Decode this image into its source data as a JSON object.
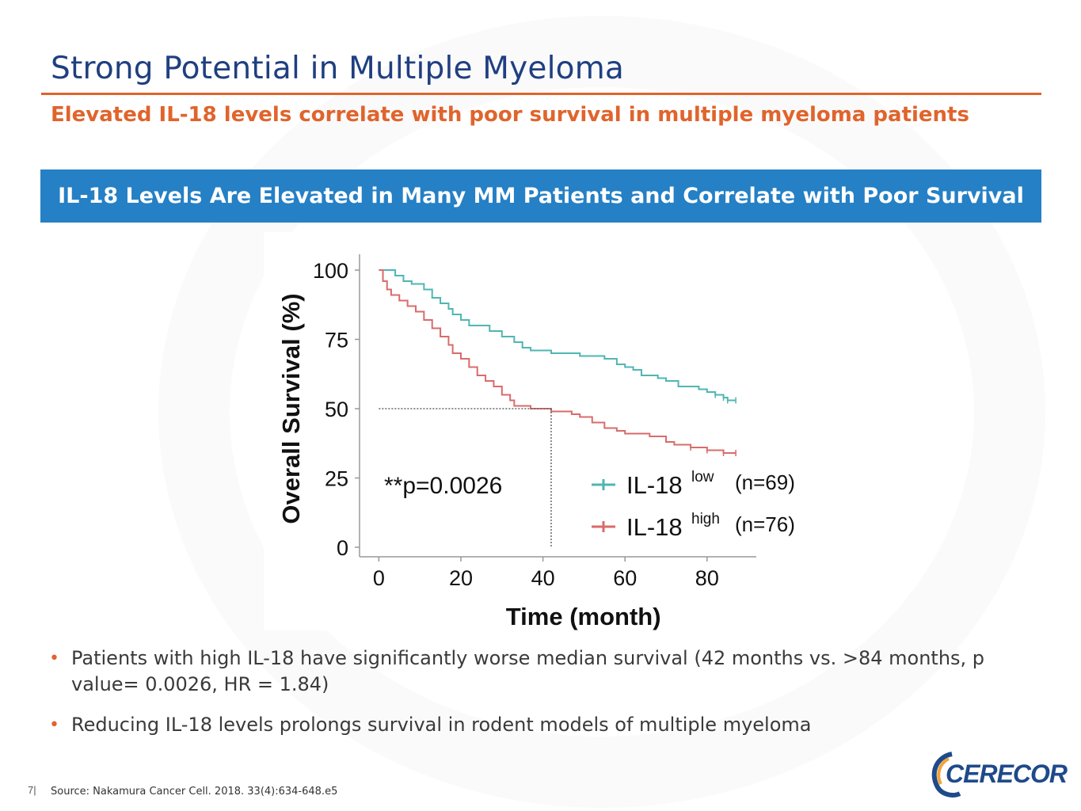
{
  "slide": {
    "title": "Strong Potential in Multiple Myeloma",
    "subtitle": "Elevated IL-18 levels correlate with poor survival in multiple myeloma patients",
    "banner": "IL-18 Levels Are Elevated in Many MM Patients and Correlate with Poor Survival",
    "page_number": "7|",
    "source": "Source: Nakamura Cancer Cell. 2018. 33(4):634-648.e5",
    "logo_text": "CERECOR"
  },
  "bullets": [
    "Patients with high IL-18 have significantly worse median survival (42 months vs. >84 months, p value= 0.0026, HR = 1.84)",
    "Reducing IL-18 levels prolongs survival in rodent models of multiple myeloma"
  ],
  "colors": {
    "title": "#1f3f80",
    "accent": "#e0642c",
    "banner": "#2580c5",
    "series_low": "#4fb6b3",
    "series_high": "#d96b6b"
  },
  "chart_data": {
    "type": "line",
    "xlabel": "Time (month)",
    "ylabel": "Overall Survival (%)",
    "xlim": [
      -2,
      92
    ],
    "ylim": [
      0,
      100
    ],
    "x_ticks": [
      0,
      20,
      40,
      60,
      80
    ],
    "y_ticks": [
      0,
      25,
      50,
      75,
      100
    ],
    "annotation": "**p=0.0026",
    "median_marker": {
      "x": 42,
      "y": 50
    },
    "series": [
      {
        "name": "IL-18",
        "sup": "low",
        "count": "(n=69)",
        "x": [
          0,
          4,
          6,
          8,
          11,
          13,
          15,
          17,
          18,
          20,
          22,
          25,
          27,
          30,
          33,
          35,
          37,
          40,
          42,
          45,
          49,
          55,
          58,
          60,
          62,
          64,
          68,
          70,
          73,
          78,
          80,
          82,
          84,
          85,
          87
        ],
        "y": [
          100,
          98,
          96,
          95,
          93,
          90,
          88,
          86,
          84,
          82,
          80,
          80,
          78,
          76,
          74,
          72,
          71,
          71,
          70,
          70,
          69,
          68,
          66,
          65,
          64,
          62,
          61,
          60,
          58,
          57,
          56,
          55,
          54,
          53,
          53
        ]
      },
      {
        "name": "IL-18",
        "sup": "high",
        "count": "(n=76)",
        "x": [
          0,
          1,
          2,
          3,
          5,
          7,
          9,
          11,
          13,
          15,
          17,
          18,
          20,
          22,
          24,
          26,
          28,
          30,
          32,
          33,
          35,
          37,
          40,
          42,
          44,
          47,
          49,
          52,
          55,
          58,
          60,
          62,
          66,
          70,
          72,
          76,
          80,
          84,
          87
        ],
        "y": [
          100,
          96,
          93,
          91,
          89,
          87,
          85,
          82,
          79,
          76,
          73,
          70,
          68,
          65,
          62,
          60,
          58,
          55,
          53,
          51,
          51,
          50,
          50,
          49,
          49,
          48,
          47,
          45,
          43,
          42,
          41,
          41,
          40,
          38,
          37,
          36,
          35,
          34,
          34
        ]
      }
    ]
  }
}
